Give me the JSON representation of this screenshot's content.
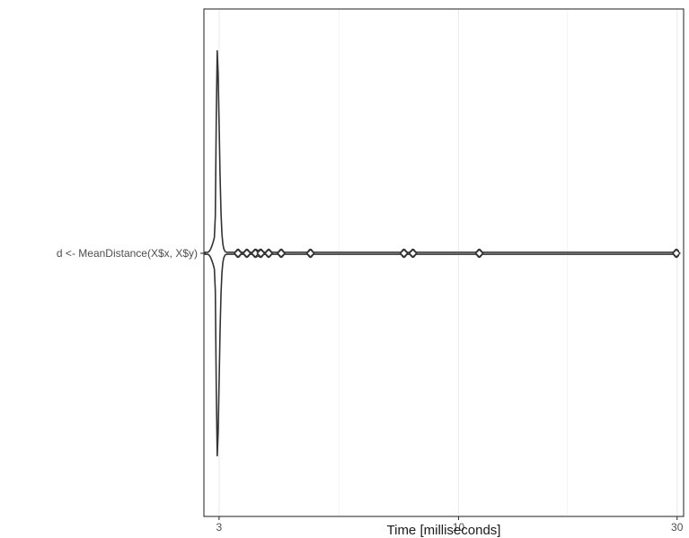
{
  "chart_data": {
    "type": "violin",
    "title": "",
    "xlabel": "Time [milliseconds]",
    "ylabel": "",
    "x_scale": "log10",
    "xlim": [
      2.78,
      31
    ],
    "x_ticks": [
      {
        "value": 3,
        "label": "3"
      },
      {
        "value": 10,
        "label": "10"
      },
      {
        "value": 30,
        "label": "30"
      }
    ],
    "x_minor_gridlines": [
      5.48,
      17.3
    ],
    "categories": [
      "d <- MeanDistance(X$x, X$y)"
    ],
    "series": [
      {
        "category": "d <- MeanDistance(X$x, X$y)",
        "outlier_points": [
          3.3,
          3.45,
          3.6,
          3.7,
          3.85,
          4.1,
          4.75,
          7.6,
          7.95,
          11.1,
          29.9
        ],
        "max_value": 30.2,
        "density_peak_at": 2.97
      }
    ],
    "grid": true,
    "legend": "none",
    "colors": {
      "outline": "#333333",
      "panel_border": "#333333",
      "gridline": "#ebebeb"
    }
  }
}
